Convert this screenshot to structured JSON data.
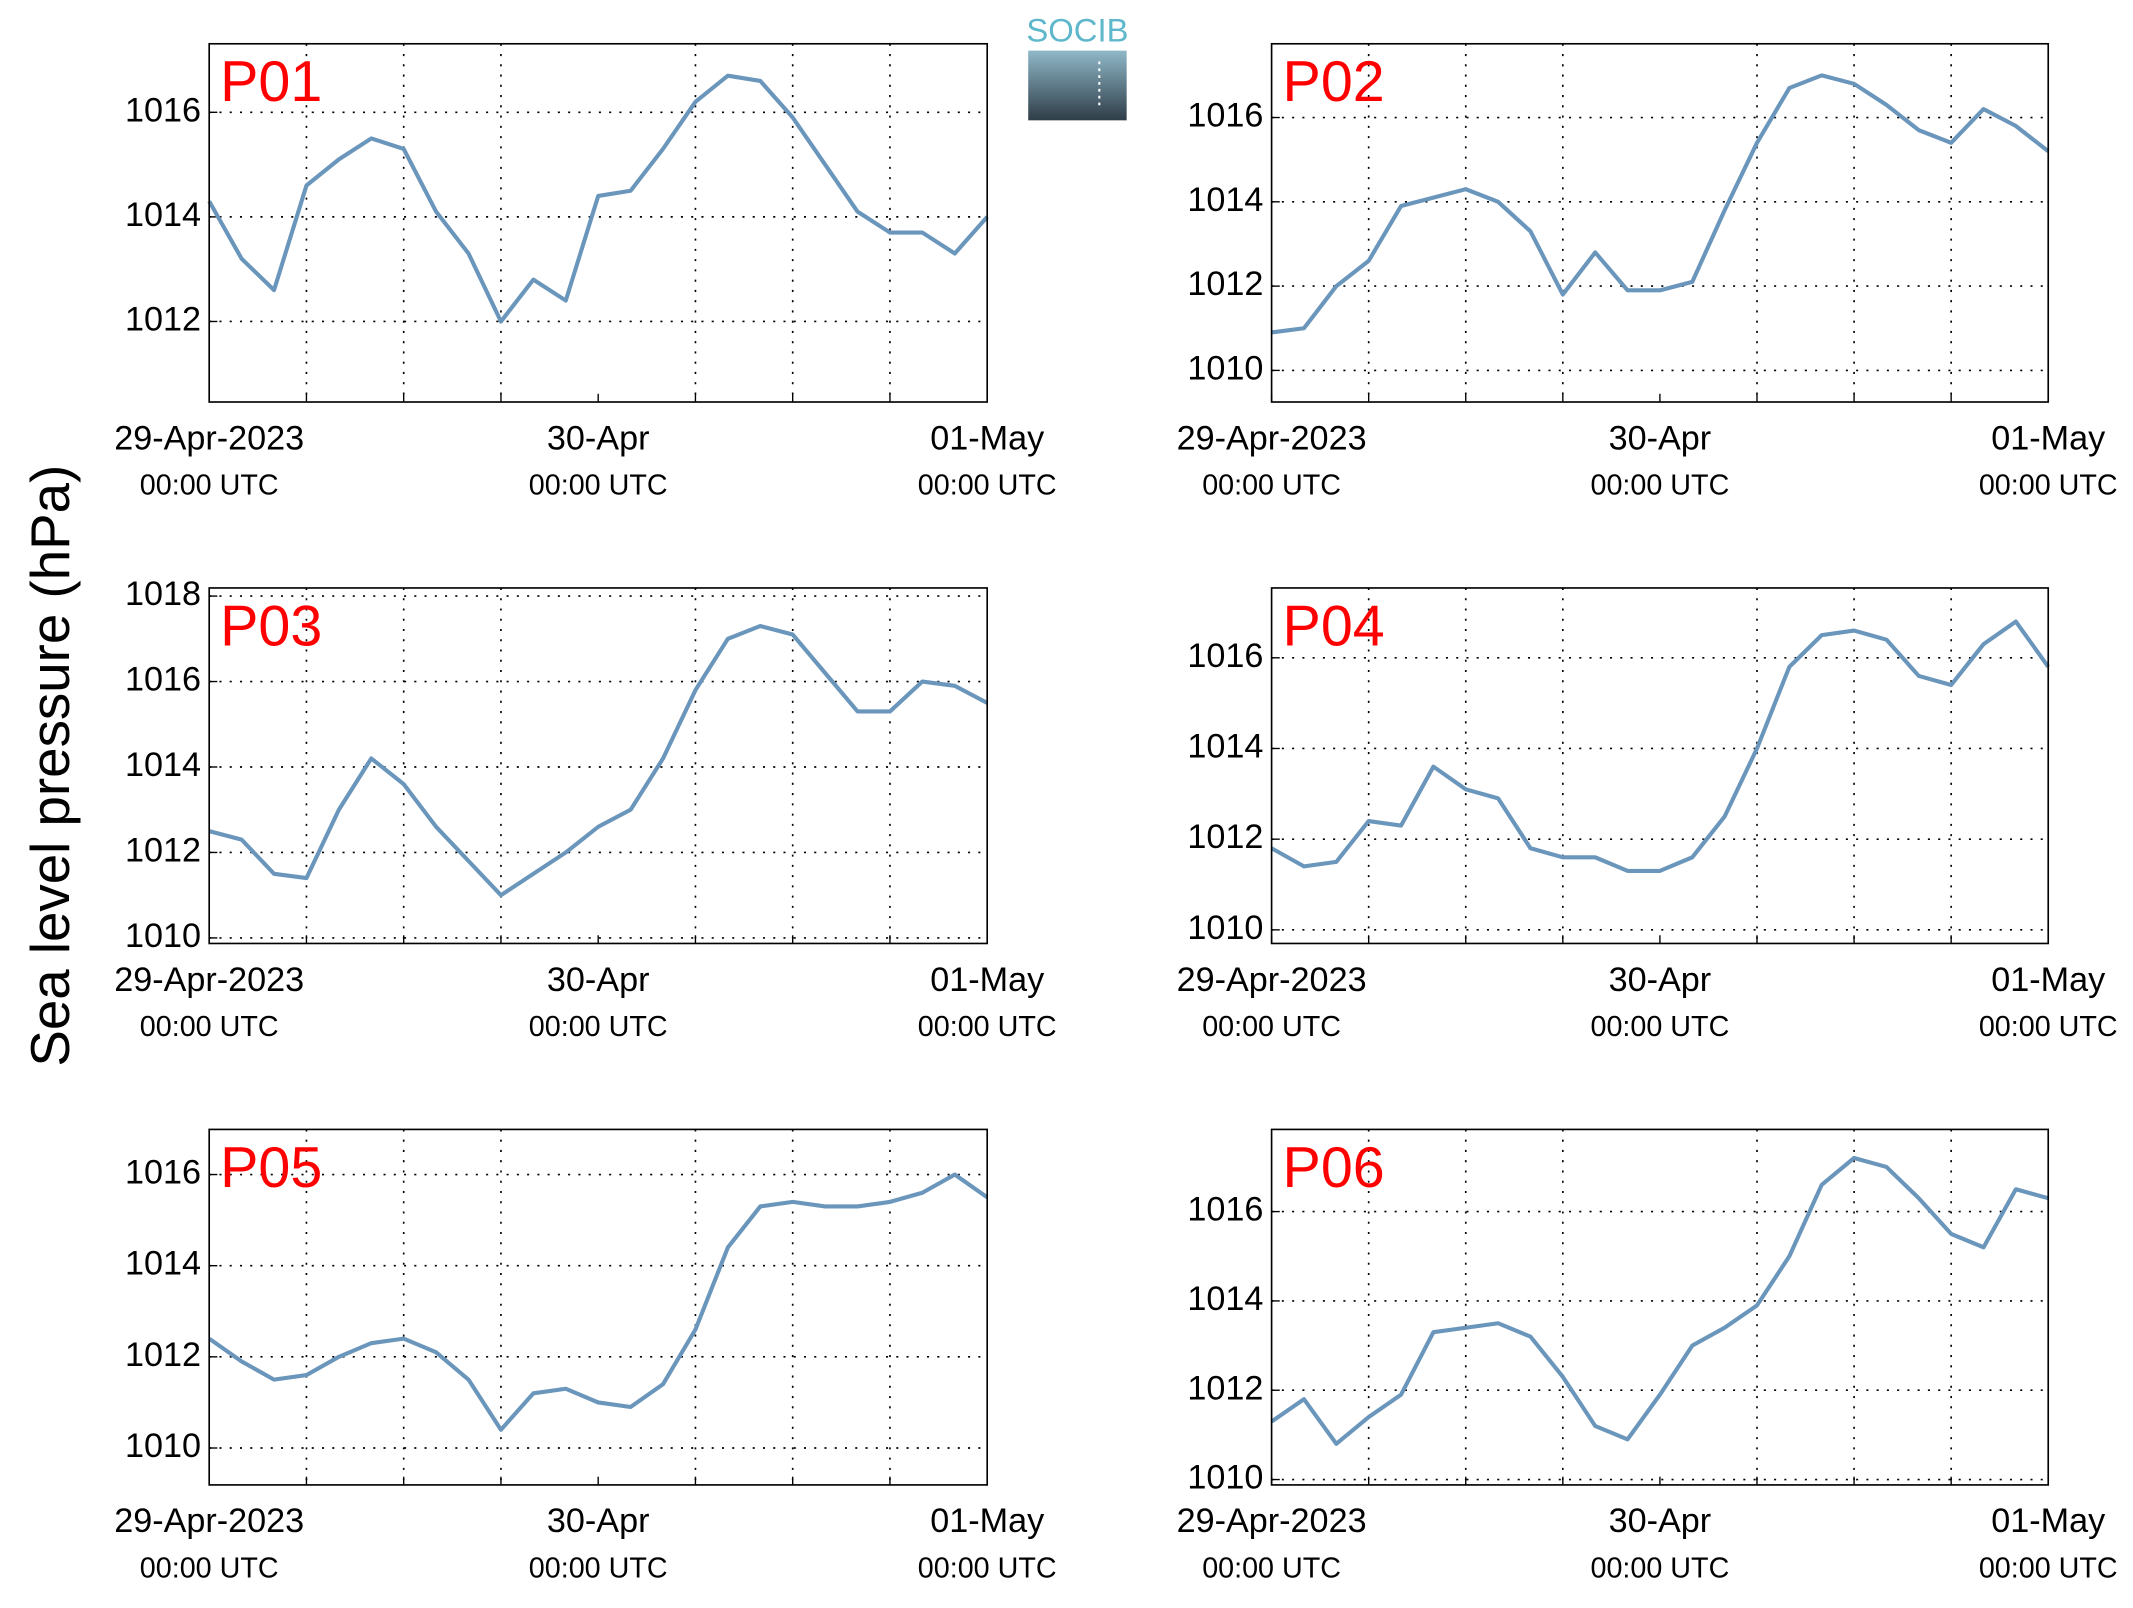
{
  "ylabel": "Sea level pressure (hPa)",
  "logo": "SOCIB",
  "chart_data": [
    {
      "type": "line",
      "title": "P01",
      "color": "#6b96bc",
      "grid": true,
      "x": [
        "2023-04-29T00:00",
        "2023-04-29T02:00",
        "2023-04-29T04:00",
        "2023-04-29T06:00",
        "2023-04-29T08:00",
        "2023-04-29T10:00",
        "2023-04-29T12:00",
        "2023-04-29T14:00",
        "2023-04-29T16:00",
        "2023-04-29T18:00",
        "2023-04-29T20:00",
        "2023-04-29T22:00",
        "2023-04-30T00:00",
        "2023-04-30T02:00",
        "2023-04-30T04:00",
        "2023-04-30T06:00",
        "2023-04-30T08:00",
        "2023-04-30T10:00",
        "2023-04-30T12:00",
        "2023-04-30T14:00",
        "2023-04-30T16:00",
        "2023-04-30T18:00",
        "2023-04-30T20:00",
        "2023-04-30T22:00",
        "2023-05-01T00:00"
      ],
      "values": [
        1014.3,
        1013.2,
        1012.6,
        1014.6,
        1015.1,
        1015.5,
        1015.3,
        1014.1,
        1013.3,
        1012.0,
        1012.8,
        1012.4,
        1014.4,
        1014.5,
        1015.3,
        1016.2,
        1016.7,
        1016.6,
        1015.9,
        1015.0,
        1014.1,
        1013.7,
        1013.7,
        1013.3,
        1014.0
      ],
      "xlim": [
        "2023-04-29T00:00",
        "2023-05-01T00:00"
      ],
      "xticks": [
        {
          "value": "2023-04-29T00:00",
          "label": [
            "29-Apr-2023",
            "00:00 UTC"
          ]
        },
        {
          "value": "2023-04-30T00:00",
          "label": [
            "30-Apr",
            "00:00 UTC"
          ]
        },
        {
          "value": "2023-05-01T00:00",
          "label": [
            "01-May",
            "00:00 UTC"
          ]
        }
      ],
      "xminorticks": [
        "2023-04-29T06:00",
        "2023-04-29T12:00",
        "2023-04-29T18:00",
        "2023-04-30T06:00",
        "2023-04-30T12:00",
        "2023-04-30T18:00"
      ],
      "ylim": [
        1010.46,
        1017.31
      ],
      "yticks": [
        1012,
        1014,
        1016
      ]
    },
    {
      "type": "line",
      "title": "P02",
      "color": "#6b96bc",
      "grid": true,
      "x": [
        "2023-04-29T00:00",
        "2023-04-29T02:00",
        "2023-04-29T04:00",
        "2023-04-29T06:00",
        "2023-04-29T08:00",
        "2023-04-29T10:00",
        "2023-04-29T12:00",
        "2023-04-29T14:00",
        "2023-04-29T16:00",
        "2023-04-29T18:00",
        "2023-04-29T20:00",
        "2023-04-29T22:00",
        "2023-04-30T00:00",
        "2023-04-30T02:00",
        "2023-04-30T04:00",
        "2023-04-30T06:00",
        "2023-04-30T08:00",
        "2023-04-30T10:00",
        "2023-04-30T12:00",
        "2023-04-30T14:00",
        "2023-04-30T16:00",
        "2023-04-30T18:00",
        "2023-04-30T20:00",
        "2023-04-30T22:00",
        "2023-05-01T00:00"
      ],
      "values": [
        1010.9,
        1011.0,
        1012.0,
        1012.6,
        1013.9,
        1014.1,
        1014.3,
        1014.0,
        1013.3,
        1011.8,
        1012.8,
        1011.9,
        1011.9,
        1012.1,
        1013.8,
        1015.4,
        1016.7,
        1017.0,
        1016.8,
        1016.3,
        1015.7,
        1015.4,
        1016.2,
        1015.8,
        1015.2
      ],
      "xlim": [
        "2023-04-29T00:00",
        "2023-05-01T00:00"
      ],
      "xticks": [
        {
          "value": "2023-04-29T00:00",
          "label": [
            "29-Apr-2023",
            "00:00 UTC"
          ]
        },
        {
          "value": "2023-04-30T00:00",
          "label": [
            "30-Apr",
            "00:00 UTC"
          ]
        },
        {
          "value": "2023-05-01T00:00",
          "label": [
            "01-May",
            "00:00 UTC"
          ]
        }
      ],
      "xminorticks": [
        "2023-04-29T06:00",
        "2023-04-29T12:00",
        "2023-04-29T18:00",
        "2023-04-30T06:00",
        "2023-04-30T12:00",
        "2023-04-30T18:00"
      ],
      "ylim": [
        1009.25,
        1017.75
      ],
      "yticks": [
        1010,
        1012,
        1014,
        1016
      ]
    },
    {
      "type": "line",
      "title": "P03",
      "color": "#6b96bc",
      "grid": true,
      "x": [
        "2023-04-29T00:00",
        "2023-04-29T02:00",
        "2023-04-29T04:00",
        "2023-04-29T06:00",
        "2023-04-29T08:00",
        "2023-04-29T10:00",
        "2023-04-29T12:00",
        "2023-04-29T14:00",
        "2023-04-29T16:00",
        "2023-04-29T18:00",
        "2023-04-29T20:00",
        "2023-04-29T22:00",
        "2023-04-30T00:00",
        "2023-04-30T02:00",
        "2023-04-30T04:00",
        "2023-04-30T06:00",
        "2023-04-30T08:00",
        "2023-04-30T10:00",
        "2023-04-30T12:00",
        "2023-04-30T14:00",
        "2023-04-30T16:00",
        "2023-04-30T18:00",
        "2023-04-30T20:00",
        "2023-04-30T22:00",
        "2023-05-01T00:00"
      ],
      "values": [
        1012.5,
        1012.3,
        1011.5,
        1011.4,
        1013.0,
        1014.2,
        1013.6,
        1012.6,
        1011.8,
        1011.0,
        1011.5,
        1012.0,
        1012.6,
        1013.0,
        1014.2,
        1015.8,
        1017.0,
        1017.3,
        1017.1,
        1016.2,
        1015.3,
        1015.3,
        1016.0,
        1015.9,
        1015.5
      ],
      "xlim": [
        "2023-04-29T00:00",
        "2023-05-01T00:00"
      ],
      "xticks": [
        {
          "value": "2023-04-29T00:00",
          "label": [
            "29-Apr-2023",
            "00:00 UTC"
          ]
        },
        {
          "value": "2023-04-30T00:00",
          "label": [
            "30-Apr",
            "00:00 UTC"
          ]
        },
        {
          "value": "2023-05-01T00:00",
          "label": [
            "01-May",
            "00:00 UTC"
          ]
        }
      ],
      "xminorticks": [
        "2023-04-29T06:00",
        "2023-04-29T12:00",
        "2023-04-29T18:00",
        "2023-04-30T06:00",
        "2023-04-30T12:00",
        "2023-04-30T18:00"
      ],
      "ylim": [
        1009.87,
        1018.19
      ],
      "yticks": [
        1010,
        1012,
        1014,
        1016,
        1018
      ]
    },
    {
      "type": "line",
      "title": "P04",
      "color": "#6b96bc",
      "grid": true,
      "x": [
        "2023-04-29T00:00",
        "2023-04-29T02:00",
        "2023-04-29T04:00",
        "2023-04-29T06:00",
        "2023-04-29T08:00",
        "2023-04-29T10:00",
        "2023-04-29T12:00",
        "2023-04-29T14:00",
        "2023-04-29T16:00",
        "2023-04-29T18:00",
        "2023-04-29T20:00",
        "2023-04-29T22:00",
        "2023-04-30T00:00",
        "2023-04-30T02:00",
        "2023-04-30T04:00",
        "2023-04-30T06:00",
        "2023-04-30T08:00",
        "2023-04-30T10:00",
        "2023-04-30T12:00",
        "2023-04-30T14:00",
        "2023-04-30T16:00",
        "2023-04-30T18:00",
        "2023-04-30T20:00",
        "2023-04-30T22:00",
        "2023-05-01T00:00"
      ],
      "values": [
        1011.8,
        1011.4,
        1011.5,
        1012.4,
        1012.3,
        1013.6,
        1013.1,
        1012.9,
        1011.8,
        1011.6,
        1011.6,
        1011.3,
        1011.3,
        1011.6,
        1012.5,
        1014.0,
        1015.8,
        1016.5,
        1016.6,
        1016.4,
        1015.6,
        1015.4,
        1016.3,
        1016.8,
        1015.8
      ],
      "xlim": [
        "2023-04-29T00:00",
        "2023-05-01T00:00"
      ],
      "xticks": [
        {
          "value": "2023-04-29T00:00",
          "label": [
            "29-Apr-2023",
            "00:00 UTC"
          ]
        },
        {
          "value": "2023-04-30T00:00",
          "label": [
            "30-Apr",
            "00:00 UTC"
          ]
        },
        {
          "value": "2023-05-01T00:00",
          "label": [
            "01-May",
            "00:00 UTC"
          ]
        }
      ],
      "xminorticks": [
        "2023-04-29T06:00",
        "2023-04-29T12:00",
        "2023-04-29T18:00",
        "2023-04-30T06:00",
        "2023-04-30T12:00",
        "2023-04-30T18:00"
      ],
      "ylim": [
        1009.7,
        1017.54
      ],
      "yticks": [
        1010,
        1012,
        1014,
        1016
      ]
    },
    {
      "type": "line",
      "title": "P05",
      "color": "#6b96bc",
      "grid": true,
      "x": [
        "2023-04-29T00:00",
        "2023-04-29T02:00",
        "2023-04-29T04:00",
        "2023-04-29T06:00",
        "2023-04-29T08:00",
        "2023-04-29T10:00",
        "2023-04-29T12:00",
        "2023-04-29T14:00",
        "2023-04-29T16:00",
        "2023-04-29T18:00",
        "2023-04-29T20:00",
        "2023-04-29T22:00",
        "2023-04-30T00:00",
        "2023-04-30T02:00",
        "2023-04-30T04:00",
        "2023-04-30T06:00",
        "2023-04-30T08:00",
        "2023-04-30T10:00",
        "2023-04-30T12:00",
        "2023-04-30T14:00",
        "2023-04-30T16:00",
        "2023-04-30T18:00",
        "2023-04-30T20:00",
        "2023-04-30T22:00",
        "2023-05-01T00:00"
      ],
      "values": [
        1012.4,
        1011.9,
        1011.5,
        1011.6,
        1012.0,
        1012.3,
        1012.4,
        1012.1,
        1011.5,
        1010.4,
        1011.2,
        1011.3,
        1011.0,
        1010.9,
        1011.4,
        1012.6,
        1014.4,
        1015.3,
        1015.4,
        1015.3,
        1015.3,
        1015.4,
        1015.6,
        1016.0,
        1015.5
      ],
      "xlim": [
        "2023-04-29T00:00",
        "2023-05-01T00:00"
      ],
      "xticks": [
        {
          "value": "2023-04-29T00:00",
          "label": [
            "29-Apr-2023",
            "00:00 UTC"
          ]
        },
        {
          "value": "2023-04-30T00:00",
          "label": [
            "30-Apr",
            "00:00 UTC"
          ]
        },
        {
          "value": "2023-05-01T00:00",
          "label": [
            "01-May",
            "00:00 UTC"
          ]
        }
      ],
      "xminorticks": [
        "2023-04-29T06:00",
        "2023-04-29T12:00",
        "2023-04-29T18:00",
        "2023-04-30T06:00",
        "2023-04-30T12:00",
        "2023-04-30T18:00"
      ],
      "ylim": [
        1009.19,
        1016.99
      ],
      "yticks": [
        1010,
        1012,
        1014,
        1016
      ]
    },
    {
      "type": "line",
      "title": "P06",
      "color": "#6b96bc",
      "grid": true,
      "x": [
        "2023-04-29T00:00",
        "2023-04-29T02:00",
        "2023-04-29T04:00",
        "2023-04-29T06:00",
        "2023-04-29T08:00",
        "2023-04-29T10:00",
        "2023-04-29T12:00",
        "2023-04-29T14:00",
        "2023-04-29T16:00",
        "2023-04-29T18:00",
        "2023-04-29T20:00",
        "2023-04-29T22:00",
        "2023-04-30T00:00",
        "2023-04-30T02:00",
        "2023-04-30T04:00",
        "2023-04-30T06:00",
        "2023-04-30T08:00",
        "2023-04-30T10:00",
        "2023-04-30T12:00",
        "2023-04-30T14:00",
        "2023-04-30T16:00",
        "2023-04-30T18:00",
        "2023-04-30T20:00",
        "2023-04-30T22:00",
        "2023-05-01T00:00"
      ],
      "values": [
        1011.3,
        1011.8,
        1010.8,
        1011.4,
        1011.9,
        1013.3,
        1013.4,
        1013.5,
        1013.2,
        1012.3,
        1011.2,
        1010.9,
        1011.9,
        1013.0,
        1013.4,
        1013.9,
        1015.0,
        1016.6,
        1017.2,
        1017.0,
        1016.3,
        1015.5,
        1015.2,
        1016.5,
        1016.3
      ],
      "xlim": [
        "2023-04-29T00:00",
        "2023-05-01T00:00"
      ],
      "xticks": [
        {
          "value": "2023-04-29T00:00",
          "label": [
            "29-Apr-2023",
            "00:00 UTC"
          ]
        },
        {
          "value": "2023-04-30T00:00",
          "label": [
            "30-Apr",
            "00:00 UTC"
          ]
        },
        {
          "value": "2023-05-01T00:00",
          "label": [
            "01-May",
            "00:00 UTC"
          ]
        }
      ],
      "xminorticks": [
        "2023-04-29T06:00",
        "2023-04-29T12:00",
        "2023-04-29T18:00",
        "2023-04-30T06:00",
        "2023-04-30T12:00",
        "2023-04-30T18:00"
      ],
      "ylim": [
        1009.88,
        1017.84
      ],
      "yticks": [
        1010,
        1012,
        1014,
        1016
      ]
    }
  ]
}
